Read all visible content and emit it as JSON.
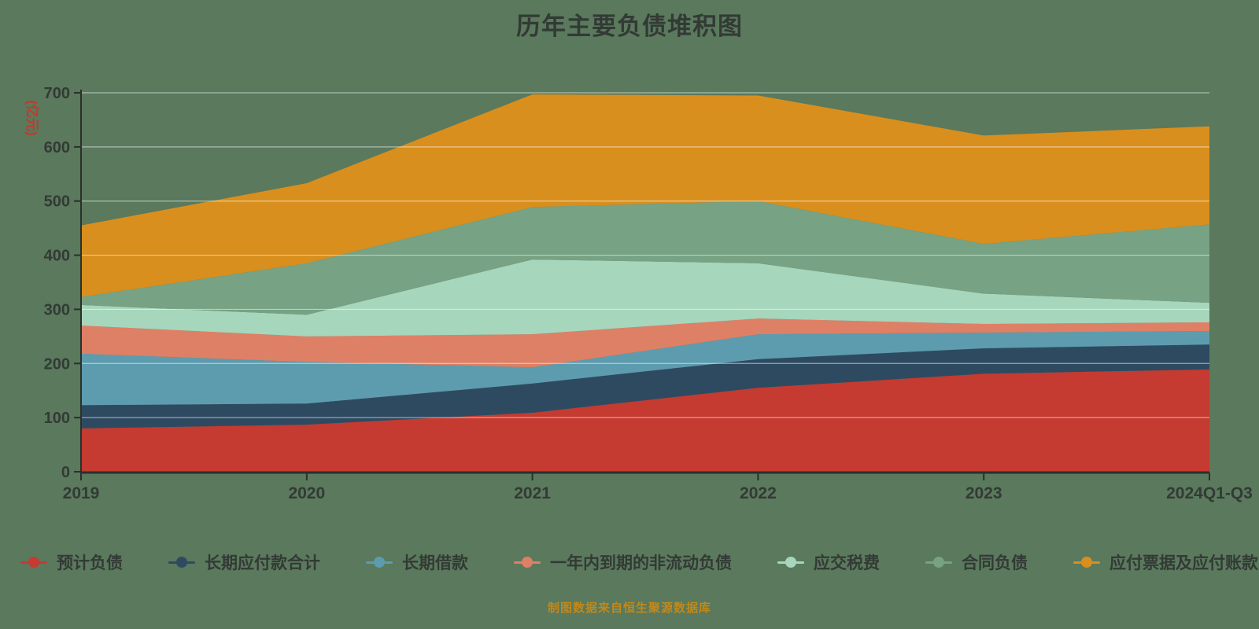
{
  "title": "历年主要负债堆积图",
  "caption": "制图数据来自恒生聚源数据库",
  "y_axis": {
    "unit": "(亿元)",
    "tick_labels": [
      "0",
      "100",
      "200",
      "300",
      "400",
      "500",
      "600",
      "700"
    ],
    "max": 700
  },
  "x_axis": {
    "categories": [
      "2019",
      "2020",
      "2021",
      "2022",
      "2023",
      "2024Q1-Q3"
    ]
  },
  "colors": {
    "background": "#5a795d",
    "axis": "#2b302b",
    "gridline": "rgba(255,255,255,0.5)",
    "text": "#333a35",
    "unit_text": "#c3392b",
    "caption_text": "#c1891c"
  },
  "chart_data": {
    "type": "area",
    "stacked": true,
    "title": "历年主要负债堆积图",
    "ylabel": "(亿元)",
    "ylim": [
      0,
      700
    ],
    "grid": true,
    "legend_position": "bottom",
    "categories": [
      "2019",
      "2020",
      "2021",
      "2022",
      "2023",
      "2024Q1-Q3"
    ],
    "series": [
      {
        "name": "预计负债",
        "color": "#c53a31",
        "values": [
          80,
          87,
          109,
          155,
          181,
          189
        ]
      },
      {
        "name": "长期应付款合计",
        "color": "#2e4a61",
        "values": [
          43,
          39,
          54,
          53,
          47,
          46
        ]
      },
      {
        "name": "长期借款",
        "color": "#5d9cae",
        "values": [
          95,
          77,
          30,
          46,
          29,
          25
        ]
      },
      {
        "name": "一年内到期的非流动负债",
        "color": "#de8066",
        "values": [
          52,
          47,
          61,
          29,
          16,
          16
        ]
      },
      {
        "name": "应交税费",
        "color": "#a6d6bc",
        "values": [
          38,
          40,
          138,
          102,
          56,
          36
        ]
      },
      {
        "name": "合同负债",
        "color": "#77a283",
        "values": [
          15,
          95,
          97,
          115,
          92,
          145
        ]
      },
      {
        "name": "应付票据及应付账款",
        "color": "#d98f1d",
        "values": [
          132,
          148,
          208,
          195,
          200,
          181
        ]
      }
    ],
    "totals": [
      455,
      533,
      697,
      695,
      621,
      638
    ]
  }
}
